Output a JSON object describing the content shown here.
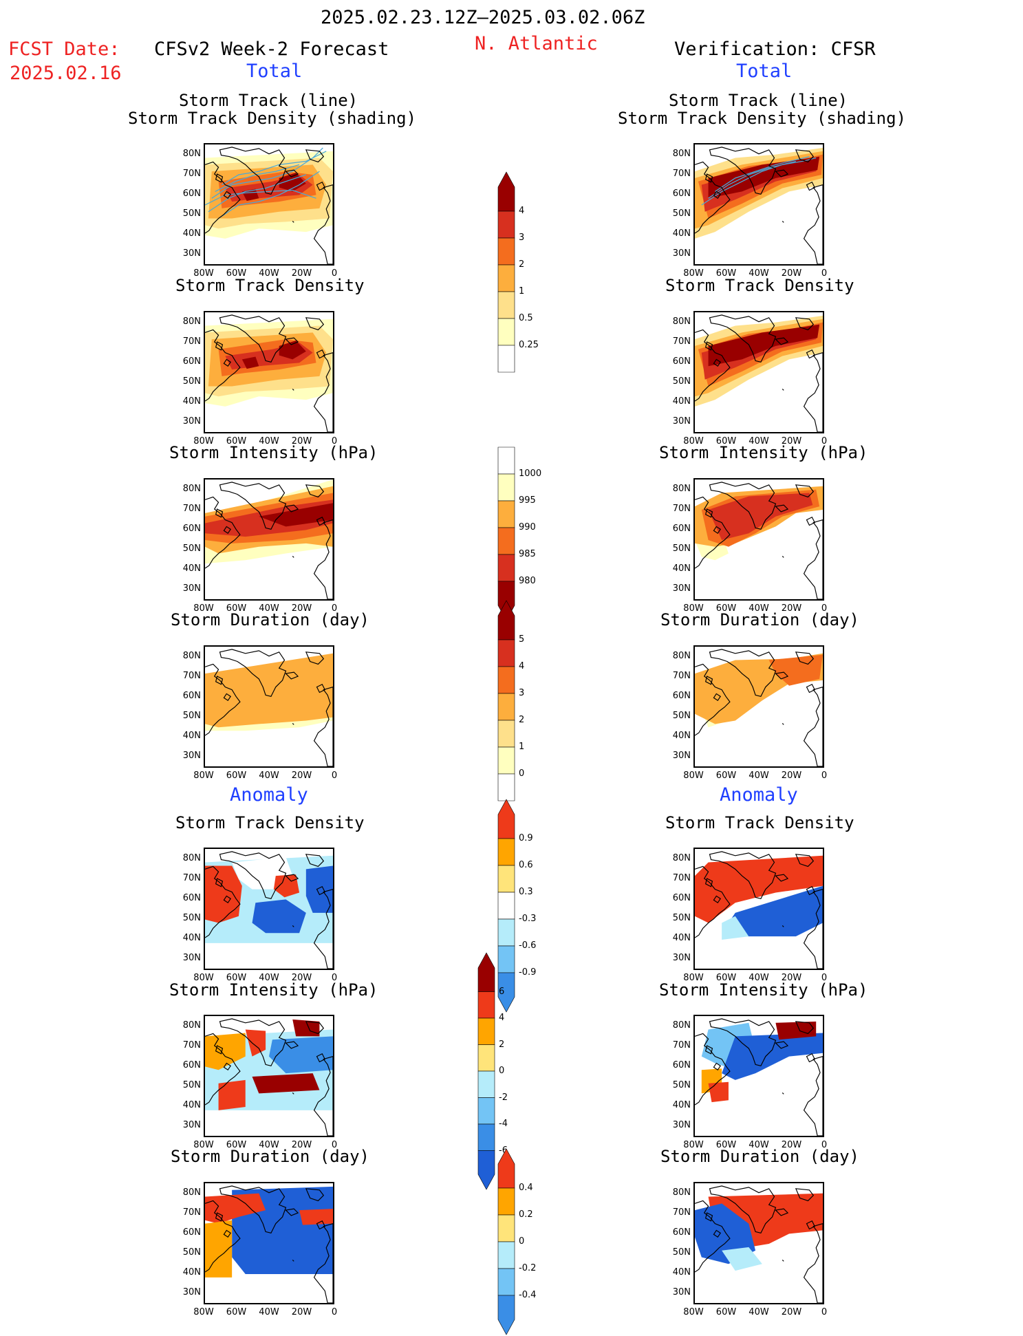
{
  "header": {
    "period": "2025.02.23.12Z–2025.03.02.06Z",
    "fcst_label": "FCST Date:",
    "fcst_date": "2025.02.16",
    "region": "N. Atlantic",
    "left_title": "CFSv2 Week-2 Forecast",
    "right_title": "Verification: CFSR",
    "total_label": "Total",
    "anomaly_label": "Anomaly"
  },
  "axes": {
    "lat_ticks": [
      "80N",
      "70N",
      "60N",
      "50N",
      "40N",
      "30N"
    ],
    "lon_ticks": [
      "80W",
      "60W",
      "40W",
      "20W",
      "0"
    ]
  },
  "panels": {
    "track_line_title1": "Storm Track (line)",
    "track_line_title2": "Storm Track Density (shading)",
    "track_density_title": "Storm Track Density",
    "intensity_title": "Storm Intensity (hPa)",
    "duration_title": "Storm Duration (day)"
  },
  "colorbars": {
    "density": [
      "4",
      "3",
      "2",
      "1",
      "0.5",
      "0.25"
    ],
    "intensity": [
      "1000",
      "995",
      "990",
      "985",
      "980"
    ],
    "duration": [
      "5",
      "4",
      "3",
      "2",
      "1",
      "0"
    ],
    "density_anom": [
      "0.9",
      "0.6",
      "0.3",
      "-0.3",
      "-0.6",
      "-0.9"
    ],
    "intensity_anom": [
      "6",
      "4",
      "2",
      "0",
      "-2",
      "-4",
      "-6"
    ],
    "duration_anom": [
      "0.4",
      "0.2",
      "0",
      "-0.2",
      "-0.4"
    ]
  },
  "colors": {
    "warm": [
      "#ffffbf",
      "#fee08b",
      "#fdae3d",
      "#f46d1e",
      "#d7301f",
      "#990000"
    ],
    "anom_pos": [
      "#ffe47a",
      "#ffa500",
      "#ee3a1a",
      "#990000"
    ],
    "anom_neg": [
      "#b5ecfa",
      "#73c4f5",
      "#3a8ee6",
      "#1f5fd6"
    ],
    "track_line": "#4aa8d8"
  }
}
